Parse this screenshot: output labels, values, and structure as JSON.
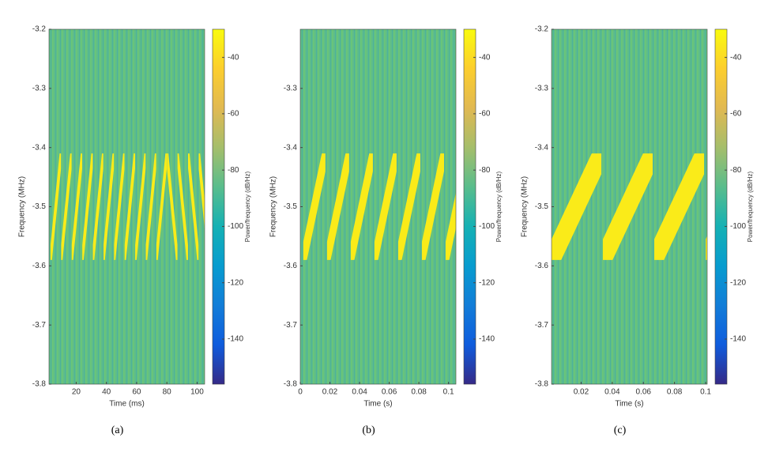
{
  "chart_data": [
    {
      "type": "spectrogram",
      "caption": "(a)",
      "xlabel": "Time (ms)",
      "ylabel": "Frequency (MHz)",
      "colorbar_label": "Power/frequency (dB/Hz)",
      "xlim": [
        2,
        105
      ],
      "xticks": [
        20,
        40,
        60,
        80,
        100
      ],
      "ylim": [
        -3.8,
        -3.2
      ],
      "yticks": [
        -3.2,
        -3.3,
        -3.4,
        -3.5,
        -3.6,
        -3.7,
        -3.8
      ],
      "clim": [
        -156,
        -30
      ],
      "cticks": [
        -40,
        -60,
        -80,
        -100,
        -120,
        -140
      ],
      "colormap": "parula",
      "background_level": -85,
      "chirp_level": -35,
      "band_width": 0.05,
      "chirps": [
        {
          "t0": 3,
          "t1": 10,
          "f0": -3.59,
          "f1": -3.41
        },
        {
          "t0": 10,
          "t1": 17,
          "f0": -3.59,
          "f1": -3.41
        },
        {
          "t0": 17,
          "t1": 24,
          "f0": -3.59,
          "f1": -3.41
        },
        {
          "t0": 24,
          "t1": 31,
          "f0": -3.59,
          "f1": -3.41
        },
        {
          "t0": 31,
          "t1": 38,
          "f0": -3.59,
          "f1": -3.41
        },
        {
          "t0": 38,
          "t1": 45,
          "f0": -3.59,
          "f1": -3.41
        },
        {
          "t0": 45,
          "t1": 52,
          "f0": -3.59,
          "f1": -3.41
        },
        {
          "t0": 52,
          "t1": 59,
          "f0": -3.59,
          "f1": -3.41
        },
        {
          "t0": 59,
          "t1": 66,
          "f0": -3.59,
          "f1": -3.41
        },
        {
          "t0": 66,
          "t1": 73,
          "f0": -3.59,
          "f1": -3.41
        },
        {
          "t0": 73,
          "t1": 80,
          "f0": -3.59,
          "f1": -3.41
        },
        {
          "t0": 80,
          "t1": 87,
          "f0": -3.41,
          "f1": -3.59
        },
        {
          "t0": 87,
          "t1": 94,
          "f0": -3.41,
          "f1": -3.59
        },
        {
          "t0": 94,
          "t1": 101,
          "f0": -3.41,
          "f1": -3.59
        },
        {
          "t0": 101,
          "t1": 108,
          "f0": -3.41,
          "f1": -3.59
        }
      ]
    },
    {
      "type": "spectrogram",
      "caption": "(b)",
      "xlabel": "Time (s)",
      "ylabel": "Frequency (MHz)",
      "colorbar_label": "Power/frequency (dB/Hz)",
      "xlim": [
        0,
        0.105
      ],
      "xticks": [
        0,
        0.02,
        0.04,
        0.06,
        0.08,
        0.1
      ],
      "ylim": [
        -3.8,
        -3.2
      ],
      "yticks": [
        -3.3,
        -3.4,
        -3.5,
        -3.6,
        -3.7,
        -3.8
      ],
      "clim": [
        -156,
        -30
      ],
      "cticks": [
        -40,
        -60,
        -80,
        -100,
        -120,
        -140
      ],
      "colormap": "parula",
      "background_level": -85,
      "chirp_level": -35,
      "band_width": 0.06,
      "chirps": [
        {
          "t0": 0.002,
          "t1": 0.017,
          "f0": -3.59,
          "f1": -3.41
        },
        {
          "t0": 0.018,
          "t1": 0.033,
          "f0": -3.59,
          "f1": -3.41
        },
        {
          "t0": 0.034,
          "t1": 0.049,
          "f0": -3.59,
          "f1": -3.41
        },
        {
          "t0": 0.05,
          "t1": 0.065,
          "f0": -3.59,
          "f1": -3.41
        },
        {
          "t0": 0.066,
          "t1": 0.081,
          "f0": -3.59,
          "f1": -3.41
        },
        {
          "t0": 0.082,
          "t1": 0.097,
          "f0": -3.59,
          "f1": -3.41
        },
        {
          "t0": 0.098,
          "t1": 0.113,
          "f0": -3.59,
          "f1": -3.41
        }
      ]
    },
    {
      "type": "spectrogram",
      "caption": "(c)",
      "xlabel": "Time (s)",
      "ylabel": "Frequency (MHz)",
      "colorbar_label": "Power/frequency (dB/Hz)",
      "xlim": [
        0.001,
        0.101
      ],
      "xticks": [
        0.02,
        0.04,
        0.06,
        0.08,
        0.1
      ],
      "ylim": [
        -3.8,
        -3.2
      ],
      "yticks": [
        -3.2,
        -3.3,
        -3.4,
        -3.5,
        -3.6,
        -3.7,
        -3.8
      ],
      "clim": [
        -156,
        -30
      ],
      "cticks": [
        -40,
        -60,
        -80,
        -100,
        -120,
        -140
      ],
      "colormap": "parula",
      "background_level": -85,
      "chirp_level": -35,
      "band_width": 0.07,
      "chirps": [
        {
          "t0": 0.001,
          "t1": 0.033,
          "f0": -3.59,
          "f1": -3.41
        },
        {
          "t0": 0.034,
          "t1": 0.066,
          "f0": -3.59,
          "f1": -3.41
        },
        {
          "t0": 0.067,
          "t1": 0.099,
          "f0": -3.59,
          "f1": -3.41
        },
        {
          "t0": 0.1,
          "t1": 0.132,
          "f0": -3.59,
          "f1": -3.41
        }
      ]
    }
  ]
}
